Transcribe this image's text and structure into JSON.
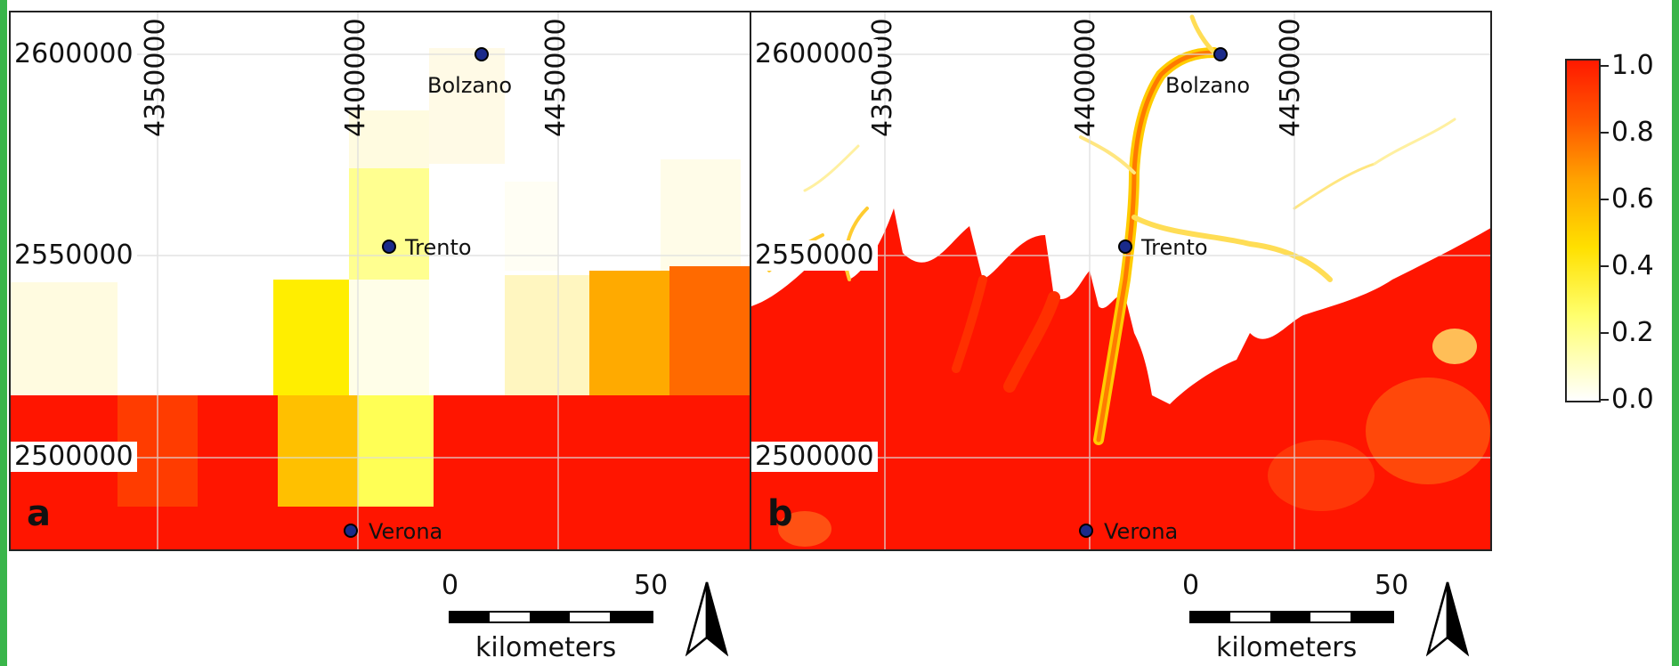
{
  "panels": [
    {
      "letter": "a",
      "x_ticks": [
        "4350000",
        "4400000",
        "4450000"
      ],
      "y_ticks": [
        "2600000",
        "2550000",
        "2500000"
      ],
      "cities": [
        "Bolzano",
        "Trento",
        "Verona"
      ]
    },
    {
      "letter": "b",
      "x_ticks": [
        "4350000",
        "4400000",
        "4450000"
      ],
      "y_ticks": [
        "2600000",
        "2550000",
        "2500000"
      ],
      "cities": [
        "Bolzano",
        "Trento",
        "Verona"
      ]
    }
  ],
  "scalebar": {
    "start": "0",
    "end": "50",
    "unit": "kilometers"
  },
  "legend": {
    "ticks": [
      "1.0",
      "0.8",
      "0.6",
      "0.4",
      "0.2",
      "0.0"
    ]
  },
  "colors": {
    "high": "#ff1a00",
    "mid": "#ffe000",
    "low": "#ffffff",
    "city": "#1a2a8a",
    "frame_strip": "#39b54a"
  }
}
